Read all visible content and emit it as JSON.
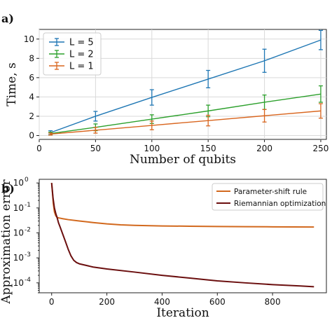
{
  "chart_data": [
    {
      "panel_label": "a)",
      "type": "line",
      "xlabel": "Number of qubits",
      "ylabel": "Time, s",
      "xlim": [
        0,
        255
      ],
      "ylim": [
        -0.4,
        11
      ],
      "x_ticks": [
        0,
        50,
        100,
        150,
        200,
        250
      ],
      "y_ticks": [
        0,
        2,
        4,
        6,
        8,
        10
      ],
      "grid": true,
      "legend_position": "top-left",
      "x": [
        10,
        50,
        100,
        150,
        200,
        250
      ],
      "series": [
        {
          "name": "L = 5",
          "color": "#1f77b4",
          "values": [
            0.3,
            2.0,
            3.95,
            5.85,
            7.75,
            9.9
          ],
          "errors": [
            0.2,
            0.5,
            0.8,
            0.9,
            1.2,
            1.0
          ]
        },
        {
          "name": "L = 2",
          "color": "#2ca02c",
          "values": [
            0.2,
            0.85,
            1.7,
            2.55,
            3.45,
            4.3
          ],
          "errors": [
            0.15,
            0.35,
            0.45,
            0.6,
            0.75,
            0.85
          ]
        },
        {
          "name": "L = 1",
          "color": "#d9661f",
          "values": [
            0.15,
            0.55,
            1.05,
            1.55,
            2.05,
            2.55
          ],
          "errors": [
            0.1,
            0.3,
            0.45,
            0.55,
            0.65,
            0.75
          ]
        }
      ]
    },
    {
      "panel_label": "b)",
      "type": "line",
      "xlabel": "Iteration",
      "ylabel": "Approximation error",
      "xlim": [
        -45,
        995
      ],
      "ylim": [
        4e-05,
        1.4
      ],
      "y_scale": "log",
      "x_ticks": [
        0,
        200,
        400,
        600,
        800
      ],
      "y_ticks": [
        "10^0",
        "10^-1",
        "10^-2",
        "10^-3",
        "10^-4"
      ],
      "grid": false,
      "legend_position": "top-right",
      "series": [
        {
          "name": "Parameter-shift rule",
          "color": "#d2691e",
          "x": [
            0,
            3,
            6,
            10,
            15,
            20,
            25,
            30,
            40,
            60,
            100,
            150,
            200,
            250,
            300,
            400,
            500,
            600,
            700,
            800,
            950
          ],
          "values": [
            1.0,
            0.4,
            0.15,
            0.07,
            0.048,
            0.042,
            0.04,
            0.039,
            0.037,
            0.034,
            0.03,
            0.026,
            0.023,
            0.021,
            0.02,
            0.019,
            0.0185,
            0.018,
            0.0178,
            0.0175,
            0.0172
          ]
        },
        {
          "name": "Riemannian optimization",
          "color": "#6b0f0f",
          "x": [
            0,
            5,
            10,
            15,
            20,
            25,
            30,
            40,
            50,
            60,
            70,
            80,
            90,
            100,
            150,
            200,
            300,
            400,
            500,
            600,
            700,
            800,
            900,
            950
          ],
          "values": [
            1.0,
            0.25,
            0.1,
            0.06,
            0.04,
            0.025,
            0.018,
            0.009,
            0.0045,
            0.0022,
            0.0012,
            0.0008,
            0.00065,
            0.00058,
            0.00043,
            0.00036,
            0.00027,
            0.0002,
            0.000155,
            0.00012,
            0.0001,
            8.5e-05,
            7.5e-05,
            7e-05
          ]
        }
      ]
    }
  ]
}
